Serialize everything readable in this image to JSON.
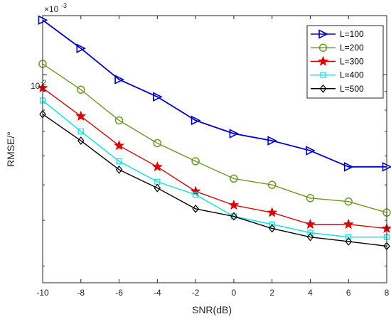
{
  "chart_data": {
    "type": "line",
    "title": "",
    "xlabel": "SNR(dB)",
    "ylabel": "RMSE/°",
    "y_scale": "log",
    "y_exponent_label": "×10",
    "y_exponent_power": "-3",
    "xlim": [
      -10,
      8
    ],
    "ylim": [
      0.0027,
      0.0145
    ],
    "grid": false,
    "legend_position": "top-right",
    "x": [
      -10,
      -8,
      -6,
      -4,
      -2,
      0,
      2,
      4,
      6,
      8
    ],
    "x_tick_labels": [
      "-10",
      "-8",
      "-6",
      "-4",
      "-2",
      "0",
      "2",
      "4",
      "6",
      "8"
    ],
    "y_tick_label": "10",
    "y_tick_label_exp": "-2",
    "series": [
      {
        "name": "L=100",
        "color": "#0000c8",
        "marker": "triangle-right",
        "values": [
          0.0141,
          0.0118,
          0.0097,
          0.0087,
          0.0075,
          0.0069,
          0.0066,
          0.0062,
          0.0056,
          0.0056
        ]
      },
      {
        "name": "L=200",
        "color": "#6b9a22",
        "marker": "circle",
        "values": [
          0.0107,
          0.0091,
          0.0075,
          0.0065,
          0.0058,
          0.0052,
          0.005,
          0.0046,
          0.0045,
          0.0042
        ]
      },
      {
        "name": "L=300",
        "color": "#e00000",
        "marker": "star",
        "values": [
          0.0092,
          0.0077,
          0.0064,
          0.0056,
          0.0048,
          0.0044,
          0.0042,
          0.0039,
          0.0039,
          0.0038
        ]
      },
      {
        "name": "L=400",
        "color": "#00e5e5",
        "marker": "square",
        "values": [
          0.0085,
          0.007,
          0.0058,
          0.0051,
          0.0047,
          0.0041,
          0.0039,
          0.0037,
          0.0036,
          0.0036
        ]
      },
      {
        "name": "L=500",
        "color": "#000000",
        "marker": "diamond",
        "values": [
          0.0078,
          0.0066,
          0.0055,
          0.0049,
          0.0043,
          0.0041,
          0.0038,
          0.0036,
          0.0035,
          0.0034
        ]
      }
    ]
  }
}
